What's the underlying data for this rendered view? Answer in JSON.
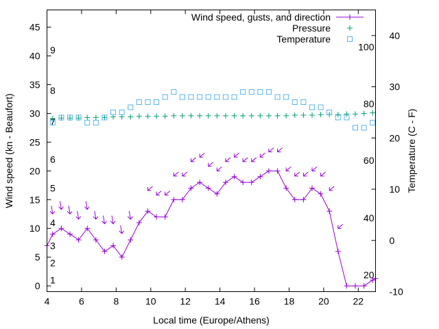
{
  "chart_data": {
    "type": "line",
    "xlabel": "Local time (Europe/Athens)",
    "ylabel": "Wind speed (kn - Beaufort)",
    "y2label": "Temperature (C - F)",
    "xlim": [
      4.0,
      23.0
    ],
    "ylim": [
      -1.0,
      48.0
    ],
    "y2lim": [
      -10.0,
      45.0
    ],
    "grid": false,
    "legend_position": "top-right",
    "x_ticks": [
      4,
      6,
      8,
      10,
      12,
      14,
      16,
      18,
      20,
      22
    ],
    "y_ticks": [
      0,
      5,
      10,
      15,
      20,
      25,
      30,
      35,
      40,
      45
    ],
    "y2_ticks": [
      -10,
      0,
      10,
      20,
      30,
      40
    ],
    "beaufort_labels": [
      {
        "y": 1.0,
        "text": "1"
      },
      {
        "y": 4.0,
        "text": "2"
      },
      {
        "y": 7.0,
        "text": "3"
      },
      {
        "y": 11.0,
        "text": "4"
      },
      {
        "y": 17.0,
        "text": "5"
      },
      {
        "y": 22.0,
        "text": "6"
      },
      {
        "y": 28.5,
        "text": "7"
      },
      {
        "y": 34.0,
        "text": "8"
      },
      {
        "y": 41.0,
        "text": "9"
      }
    ],
    "fahrenheit_labels": [
      {
        "y2": -6.7,
        "text": "20"
      },
      {
        "y2": 4.4,
        "text": "40"
      },
      {
        "y2": 15.6,
        "text": "60"
      },
      {
        "y2": 26.7,
        "text": "80"
      },
      {
        "y2": 37.8,
        "text": "100"
      }
    ],
    "series": [
      {
        "name": "Wind speed, gusts, and direction",
        "color": "#9400d3",
        "axis": "y",
        "x": [
          4.0,
          4.33,
          4.83,
          5.33,
          5.83,
          6.33,
          6.83,
          7.33,
          7.83,
          8.33,
          8.83,
          9.33,
          9.83,
          10.33,
          10.83,
          11.33,
          11.83,
          12.33,
          12.83,
          13.33,
          13.83,
          14.33,
          14.83,
          15.33,
          15.83,
          16.33,
          16.83,
          17.33,
          17.83,
          18.33,
          18.83,
          19.33,
          19.83,
          20.33,
          20.83,
          21.33,
          21.83,
          22.33,
          22.83,
          23.0
        ],
        "values": [
          7,
          9,
          10,
          9,
          8,
          10,
          8,
          6,
          7,
          5,
          8,
          11,
          13,
          12,
          12,
          15,
          15,
          17,
          18,
          17,
          16,
          18,
          19,
          18,
          18,
          19,
          20,
          20,
          17,
          15,
          15,
          17,
          16,
          13,
          6,
          0,
          0,
          0,
          1,
          1.3
        ]
      },
      {
        "name": "Pressure",
        "color": "#009e73",
        "axis": "y",
        "x": [
          4.33,
          4.83,
          5.33,
          5.83,
          6.33,
          6.83,
          7.33,
          7.83,
          8.33,
          8.83,
          9.33,
          9.83,
          10.33,
          10.83,
          11.33,
          11.83,
          12.33,
          12.83,
          13.33,
          13.83,
          14.33,
          14.83,
          15.33,
          15.83,
          16.33,
          16.83,
          17.33,
          17.83,
          18.33,
          18.83,
          19.33,
          19.83,
          20.33,
          20.83,
          21.33,
          21.83,
          22.33,
          22.83
        ],
        "values": [
          29.1,
          29.2,
          29.2,
          29.2,
          29.3,
          29.3,
          29.3,
          29.4,
          29.4,
          29.4,
          29.5,
          29.5,
          29.5,
          29.5,
          29.6,
          29.6,
          29.6,
          29.6,
          29.6,
          29.6,
          29.6,
          29.6,
          29.6,
          29.6,
          29.6,
          29.6,
          29.6,
          29.6,
          29.7,
          29.7,
          29.7,
          29.8,
          29.8,
          29.8,
          29.9,
          29.9,
          30.0,
          30.1
        ]
      },
      {
        "name": "Temperature",
        "color": "#56b4e9",
        "axis": "y2",
        "x": [
          4.33,
          4.83,
          5.33,
          5.83,
          6.33,
          6.83,
          7.33,
          7.83,
          8.33,
          8.83,
          9.33,
          9.83,
          10.33,
          10.83,
          11.33,
          11.83,
          12.33,
          12.83,
          13.33,
          13.83,
          14.33,
          14.83,
          15.33,
          15.83,
          16.33,
          16.83,
          17.33,
          17.83,
          18.33,
          18.83,
          19.33,
          19.83,
          20.33,
          20.83,
          21.33,
          21.83,
          22.33,
          22.83
        ],
        "values": [
          23,
          24,
          24,
          24,
          23,
          23,
          24,
          25,
          25,
          26,
          27,
          27,
          27,
          28,
          29,
          28,
          28,
          28,
          28,
          28,
          28,
          28,
          29,
          29,
          29,
          29,
          28,
          28,
          27,
          27,
          26,
          26,
          25,
          24,
          24,
          22,
          22,
          23
        ]
      }
    ],
    "gust_arrows": {
      "color": "#9400d3",
      "x": [
        4.33,
        4.83,
        5.33,
        5.83,
        6.33,
        6.83,
        7.33,
        7.83,
        8.33,
        8.83,
        9.83,
        10.33,
        10.83,
        11.33,
        11.83,
        12.33,
        12.83,
        13.33,
        13.83,
        14.33,
        14.83,
        15.33,
        15.83,
        16.33,
        16.83,
        17.33,
        17.83,
        18.33,
        18.83,
        19.33,
        19.83,
        20.33,
        20.83
      ],
      "values": [
        12.5,
        13.3,
        12.5,
        11.6,
        13.3,
        11.6,
        10.8,
        10.8,
        9.1,
        11.6,
        16.6,
        15.8,
        15.8,
        19.1,
        19.1,
        21.6,
        22.4,
        20.8,
        20.0,
        21.6,
        22.4,
        21.6,
        21.6,
        22.4,
        23.3,
        23.3,
        20.0,
        19.1,
        19.1,
        20.0,
        19.1,
        16.6,
        10.0
      ]
    }
  }
}
